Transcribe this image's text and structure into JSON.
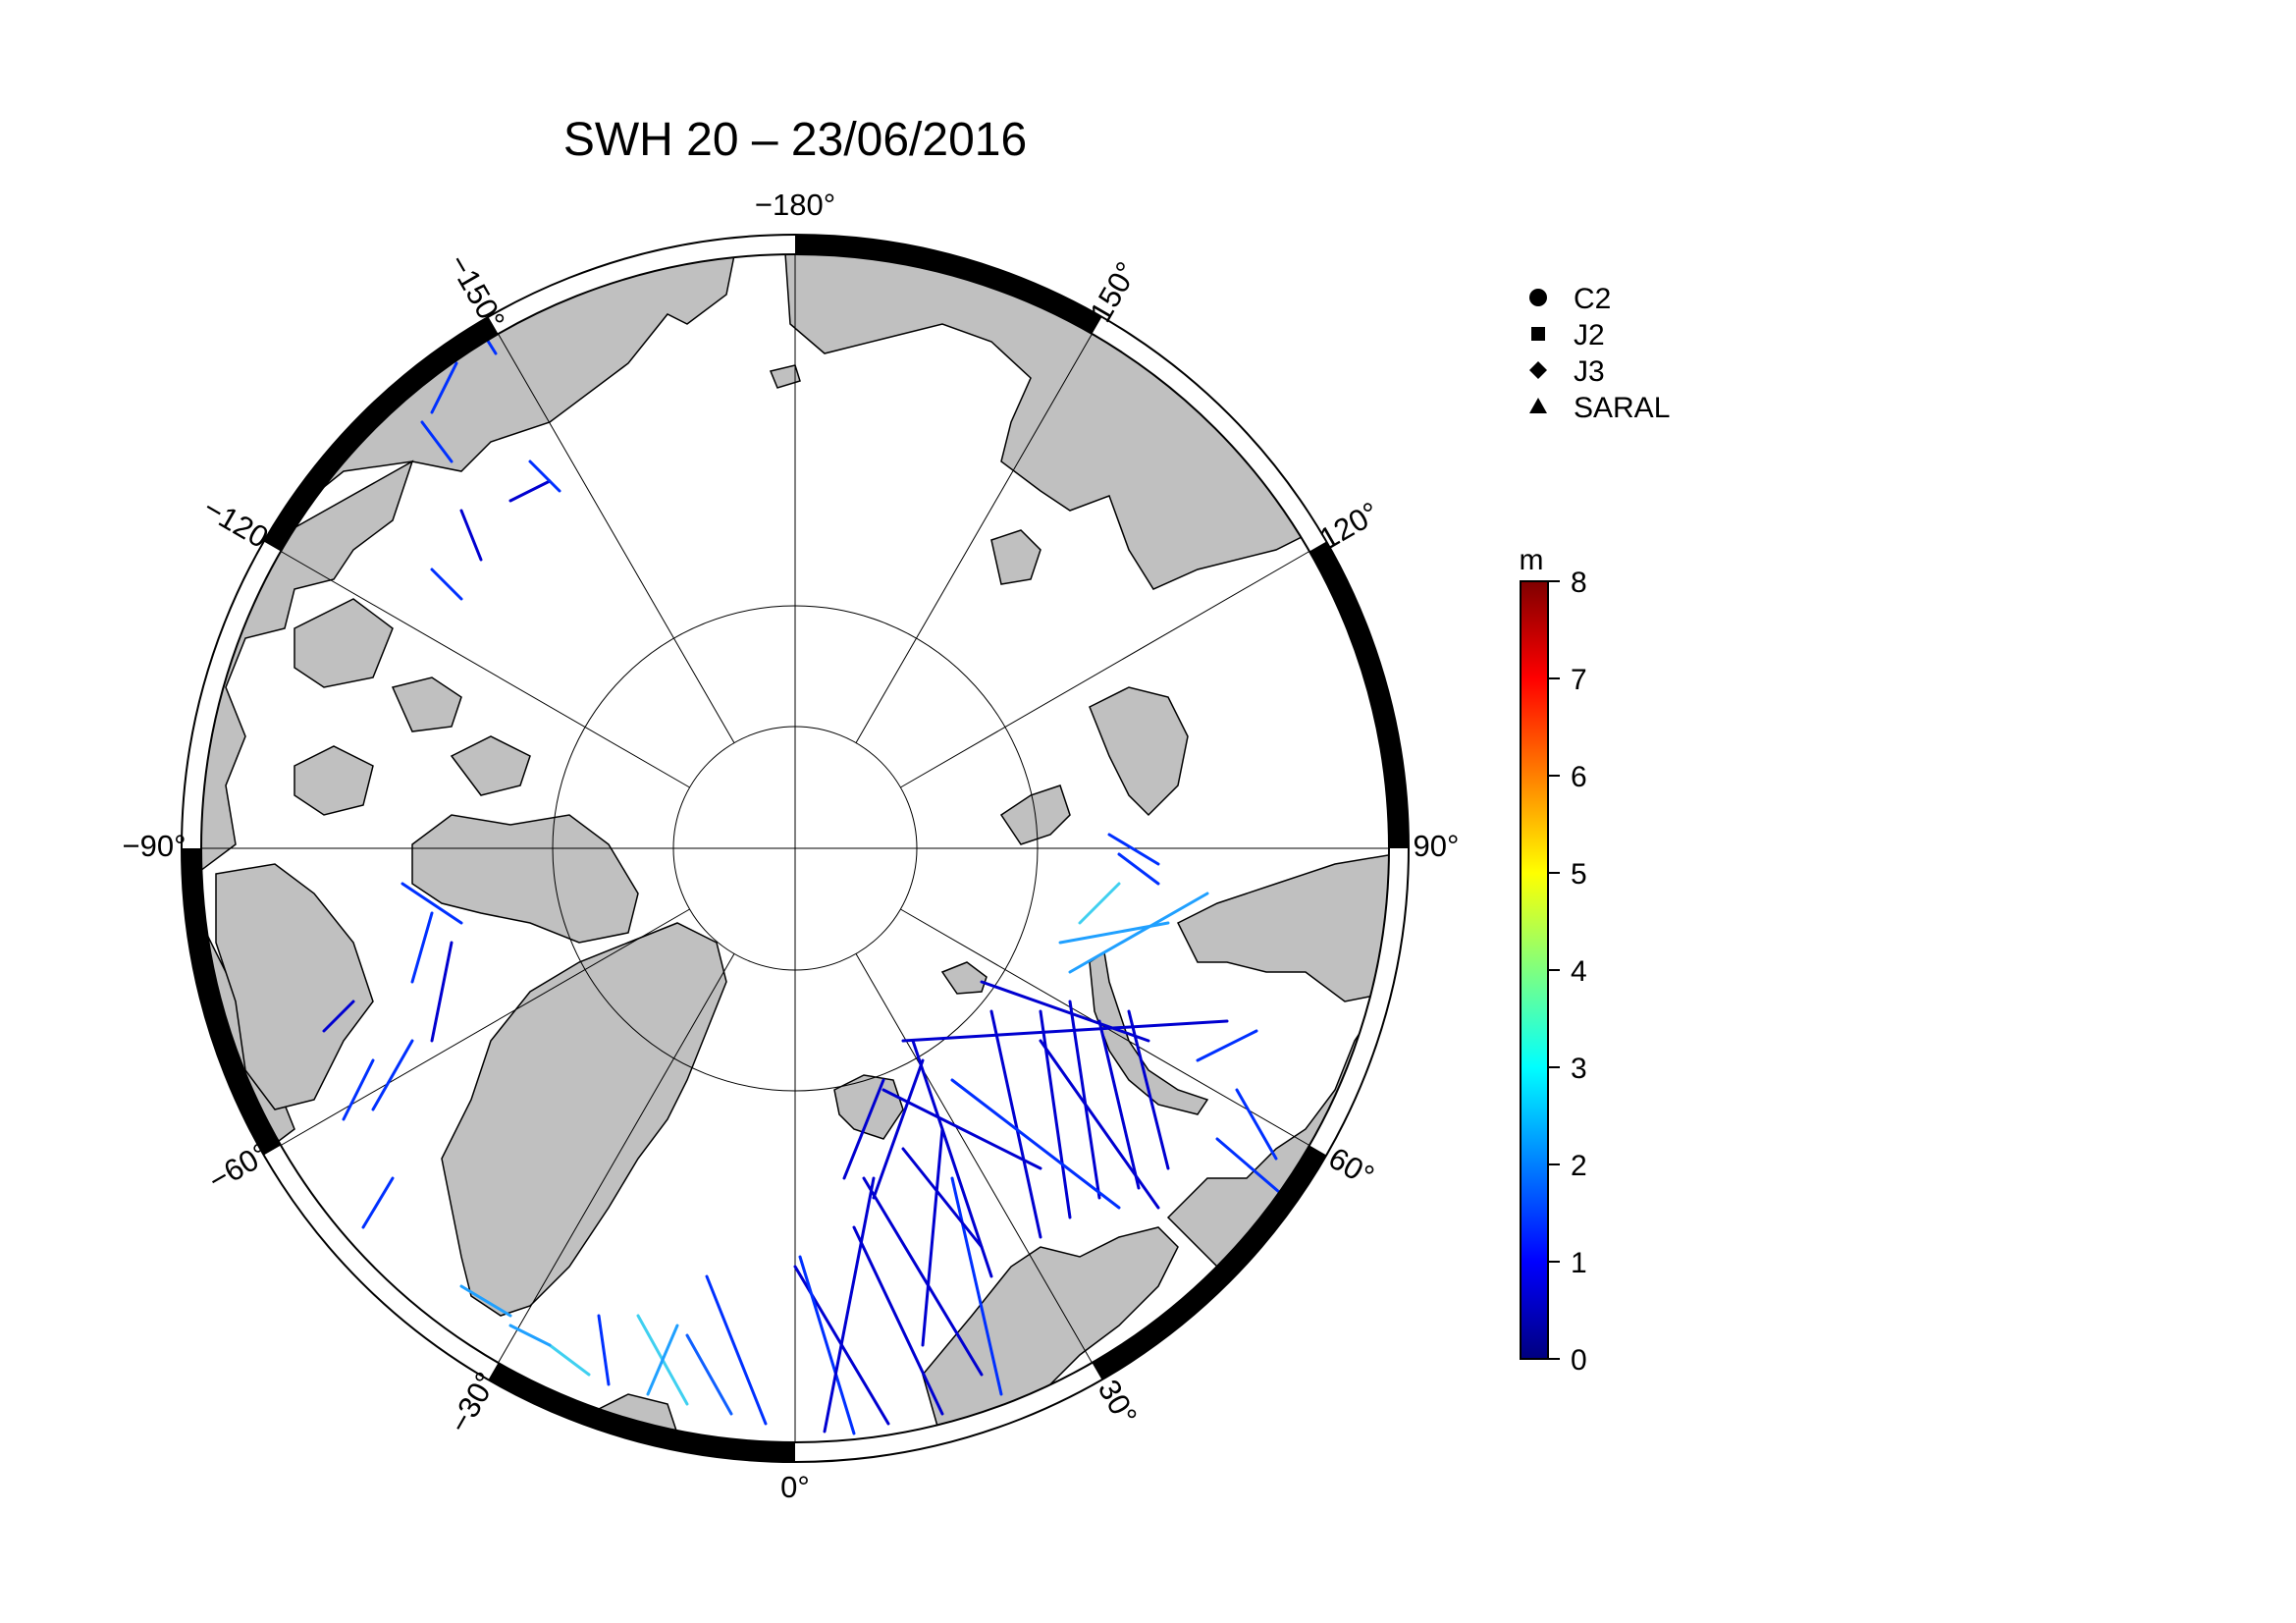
{
  "title": "SWH 20 – 23/06/2016",
  "map": {
    "projection": "polar stereographic (north)",
    "center": "North Pole",
    "latitude_circles_deg": [
      80,
      70
    ],
    "meridians_deg": [
      -180,
      -150,
      -120,
      -90,
      -60,
      -30,
      0,
      30,
      60,
      90,
      120,
      150
    ],
    "meridian_labels": [
      "−180°",
      "−150°",
      "−120°",
      "−90°",
      "−60°",
      "−30°",
      "0°",
      "30°",
      "60°",
      "90°",
      "120°",
      "150°"
    ],
    "land_color": "#c0c0c0",
    "ocean_color": "#ffffff"
  },
  "legend": {
    "missions": [
      {
        "label": "C2",
        "marker": "circle"
      },
      {
        "label": "J2",
        "marker": "square"
      },
      {
        "label": "J3",
        "marker": "diamond"
      },
      {
        "label": "SARAL",
        "marker": "triangle"
      }
    ]
  },
  "colorbar": {
    "unit": "m",
    "min": 0,
    "max": 8,
    "ticks": [
      "0",
      "1",
      "2",
      "3",
      "4",
      "5",
      "6",
      "7",
      "8"
    ],
    "colormap": "jet",
    "colors": [
      "#00007f",
      "#0000ff",
      "#007fff",
      "#00ffff",
      "#7fff7f",
      "#ffff00",
      "#ff7f00",
      "#ff0000",
      "#7f0000"
    ]
  },
  "tracks": {
    "variable": "significant wave height",
    "typical_range_m": [
      0.5,
      3
    ],
    "colors": [
      "#0000d0",
      "#0030ff",
      "#1060ff",
      "#20a0ff",
      "#40d0f0"
    ]
  }
}
